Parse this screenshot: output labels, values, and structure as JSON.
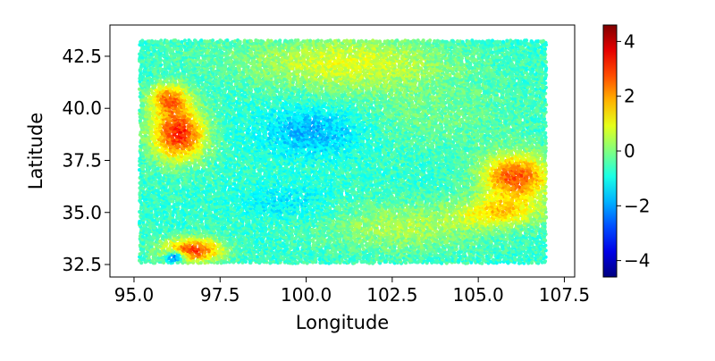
{
  "chart_data": {
    "type": "scatter",
    "title": "",
    "xlabel": "Longitude",
    "ylabel": "Latitude",
    "xlim": [
      94.3,
      107.8
    ],
    "ylim": [
      31.9,
      44.0
    ],
    "xticks": [
      95.0,
      97.5,
      100.0,
      102.5,
      105.0,
      107.5
    ],
    "xtick_labels": [
      "95.0",
      "97.5",
      "100.0",
      "102.5",
      "105.0",
      "107.5"
    ],
    "yticks": [
      32.5,
      35.0,
      37.5,
      40.0,
      42.5
    ],
    "ytick_labels": [
      "32.5",
      "35.0",
      "37.5",
      "40.0",
      "42.5"
    ],
    "colorbar": {
      "colormap": "jet",
      "vmin": -4.6,
      "vmax": 4.6,
      "ticks": [
        4,
        2,
        0,
        -2,
        -4
      ],
      "tick_labels": [
        "4",
        "2",
        "0",
        "−2",
        "−4"
      ]
    },
    "data_extent": {
      "lon": [
        95.2,
        107.0
      ],
      "lat": [
        32.6,
        43.3
      ]
    },
    "value_field": {
      "background": -0.7,
      "regions": [
        {
          "lon": 96.3,
          "lat": 38.8,
          "value": 3.2,
          "sigma_lon": 0.55,
          "sigma_lat": 0.9
        },
        {
          "lon": 96.0,
          "lat": 40.5,
          "value": 2.0,
          "sigma_lon": 0.4,
          "sigma_lat": 0.5
        },
        {
          "lon": 96.7,
          "lat": 33.2,
          "value": 3.0,
          "sigma_lon": 0.6,
          "sigma_lat": 0.4
        },
        {
          "lon": 96.2,
          "lat": 32.9,
          "value": -4.0,
          "sigma_lon": 0.2,
          "sigma_lat": 0.2
        },
        {
          "lon": 106.1,
          "lat": 36.7,
          "value": 2.8,
          "sigma_lon": 0.7,
          "sigma_lat": 0.8
        },
        {
          "lon": 105.6,
          "lat": 35.0,
          "value": 1.2,
          "sigma_lon": 0.9,
          "sigma_lat": 0.5
        },
        {
          "lon": 100.2,
          "lat": 38.9,
          "value": -1.9,
          "sigma_lon": 1.0,
          "sigma_lat": 0.8
        },
        {
          "lon": 99.5,
          "lat": 35.5,
          "value": -1.3,
          "sigma_lon": 0.9,
          "sigma_lat": 0.6
        },
        {
          "lon": 101.2,
          "lat": 42.2,
          "value": 0.9,
          "sigma_lon": 2.0,
          "sigma_lat": 0.9
        },
        {
          "lon": 102.8,
          "lat": 34.3,
          "value": 0.4,
          "sigma_lon": 1.6,
          "sigma_lat": 0.8
        },
        {
          "lon": 103.8,
          "lat": 39.8,
          "value": -0.2,
          "sigma_lon": 1.8,
          "sigma_lat": 1.2
        },
        {
          "lon": 97.2,
          "lat": 42.6,
          "value": -0.5,
          "sigma_lon": 1.2,
          "sigma_lat": 0.5
        }
      ]
    }
  }
}
